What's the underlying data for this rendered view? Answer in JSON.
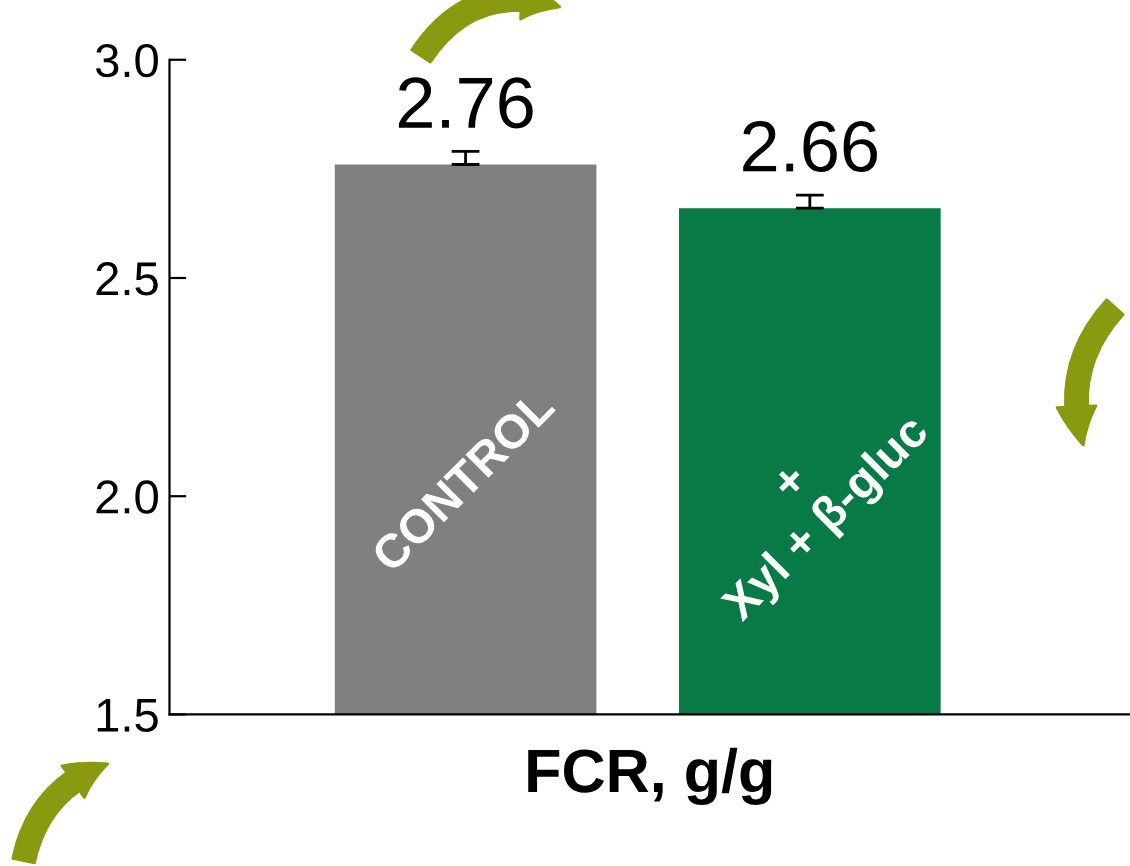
{
  "chart_data": {
    "type": "bar",
    "xlabel": "FCR, g/g",
    "categories": [
      "CONTROL",
      "+\nXyl + β-gluc"
    ],
    "values": [
      2.76,
      2.66
    ],
    "colors": [
      "#808080",
      "#077a45"
    ],
    "errors": [
      0.03,
      0.03
    ],
    "data_labels": true,
    "ylim": [
      1.5,
      3.0
    ],
    "yticks": [
      1.5,
      {
        "value": 2,
        "label": "2.0"
      },
      2.5,
      {
        "value": 3,
        "label": "3.0"
      }
    ],
    "tick_labels": "y",
    "grid": false,
    "legend": false
  }
}
